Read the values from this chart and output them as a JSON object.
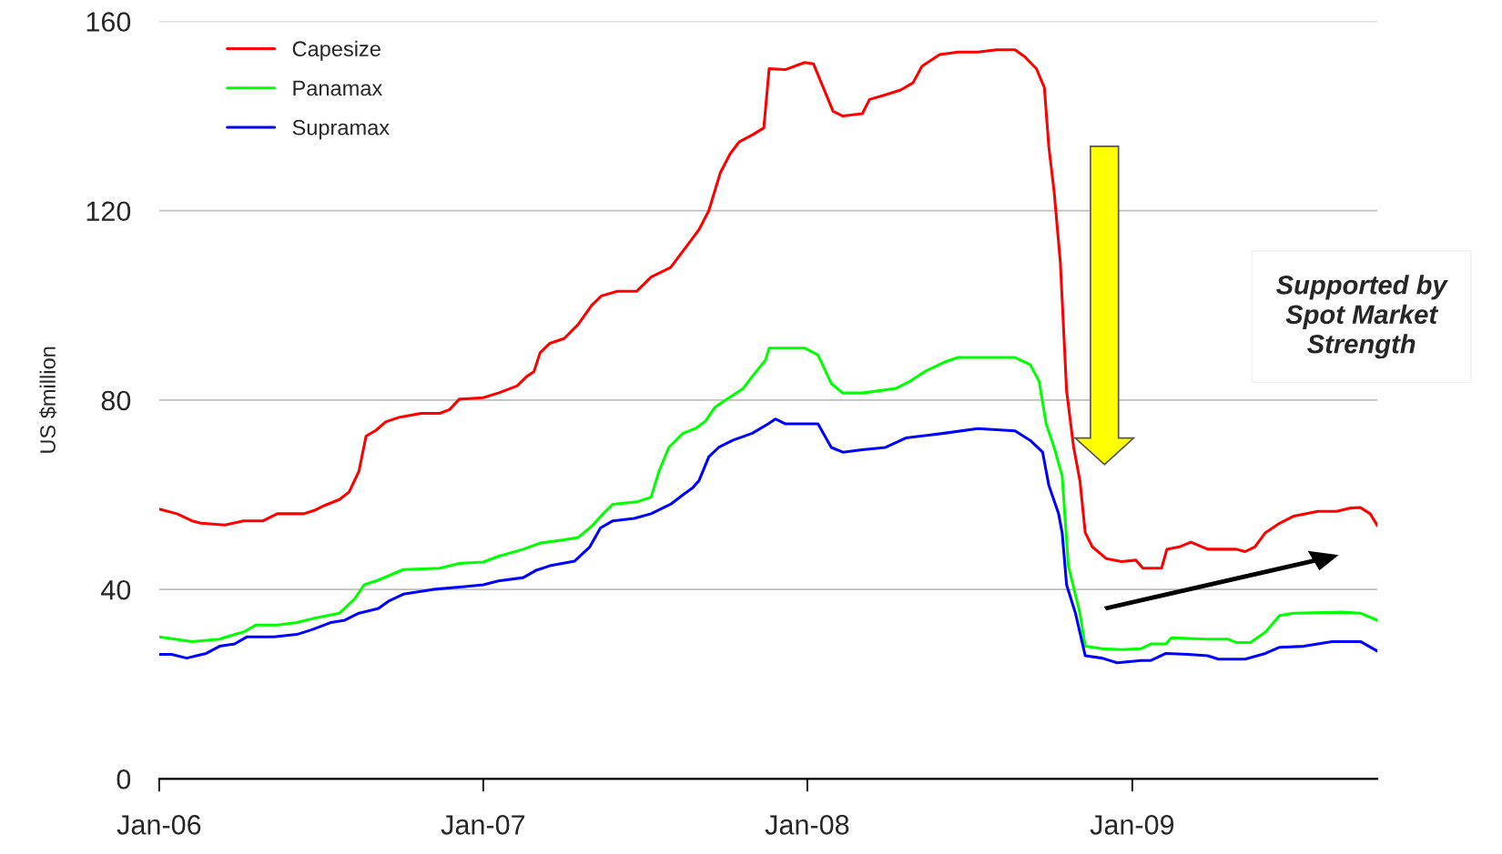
{
  "chart_data": {
    "type": "line",
    "ylabel": "US $million",
    "ylim": [
      0,
      160
    ],
    "yticks": [
      0,
      40,
      80,
      120,
      160
    ],
    "xlim": [
      "2006-01-01",
      "2009-10-04"
    ],
    "xticks": [
      {
        "value": "2006-01-01",
        "label": "Jan-06"
      },
      {
        "value": "2007-01-01",
        "label": "Jan-07"
      },
      {
        "value": "2008-01-01",
        "label": "Jan-08"
      },
      {
        "value": "2009-01-01",
        "label": "Jan-09"
      }
    ],
    "grid": "y",
    "legend": "top left",
    "marker": "none",
    "line_style": "solid",
    "annotations": [
      "Supported by\nSpot Market\nStrength"
    ],
    "series": [
      {
        "name": "Capesize",
        "color": "#ff0000",
        "x": [
          "2006-01-01",
          "2006-01-21",
          "2006-02-07",
          "2006-02-17",
          "2006-03-16",
          "2006-04-06",
          "2006-04-28",
          "2006-05-14",
          "2006-06-13",
          "2006-06-26",
          "2006-07-07",
          "2006-07-23",
          "2006-08-03",
          "2006-08-14",
          "2006-08-22",
          "2006-09-02",
          "2006-09-13",
          "2006-09-29",
          "2006-10-23",
          "2006-11-13",
          "2006-11-24",
          "2006-12-05",
          "2007-01-01",
          "2007-01-18",
          "2007-02-08",
          "2007-02-19",
          "2007-02-27",
          "2007-03-06",
          "2007-03-17",
          "2007-04-02",
          "2007-04-18",
          "2007-05-03",
          "2007-05-14",
          "2007-06-01",
          "2007-06-23",
          "2007-07-09",
          "2007-07-31",
          "2007-08-16",
          "2007-09-01",
          "2007-09-12",
          "2007-09-25",
          "2007-10-06",
          "2007-10-16",
          "2007-10-31",
          "2007-11-13",
          "2007-11-19",
          "2007-12-07",
          "2007-12-29",
          "2008-01-08",
          "2008-01-19",
          "2008-01-30",
          "2008-02-10",
          "2008-03-03",
          "2008-03-11",
          "2008-03-29",
          "2008-04-15",
          "2008-04-29",
          "2008-05-09",
          "2008-05-29",
          "2008-06-19",
          "2008-07-11",
          "2008-08-01",
          "2008-08-22",
          "2008-09-02",
          "2008-09-15",
          "2008-09-24",
          "2008-09-29",
          "2008-10-05",
          "2008-10-12",
          "2008-10-19",
          "2008-10-27",
          "2008-11-03",
          "2008-11-09",
          "2008-11-17",
          "2008-12-03",
          "2008-12-20",
          "2009-01-05",
          "2009-01-13",
          "2009-02-03",
          "2009-02-09",
          "2009-02-23",
          "2009-03-08",
          "2009-03-27",
          "2009-04-28",
          "2009-05-08",
          "2009-05-19",
          "2009-05-31",
          "2009-06-16",
          "2009-07-02",
          "2009-07-29",
          "2009-08-19",
          "2009-09-04",
          "2009-09-15",
          "2009-09-26",
          "2009-10-04"
        ],
        "values": [
          57,
          56,
          54.5,
          54,
          53.6,
          54.5,
          54.5,
          56,
          56,
          56.8,
          57.8,
          59,
          60.6,
          65,
          72.4,
          73.6,
          75.4,
          76.4,
          77.2,
          77.2,
          78,
          80.2,
          80.5,
          81.5,
          83,
          85,
          86,
          90,
          92,
          93,
          96,
          100,
          102,
          103,
          103,
          106,
          108,
          112,
          116,
          120,
          128,
          132,
          134.5,
          136,
          137.5,
          150,
          149.8,
          151.3,
          151,
          146,
          141,
          140,
          140.5,
          143.5,
          144.5,
          145.5,
          147,
          150.5,
          153,
          153.5,
          153.5,
          154,
          154,
          152.5,
          150,
          146,
          133.5,
          124,
          109,
          82,
          70,
          63,
          52,
          49,
          46.5,
          45.9,
          46.2,
          44.5,
          44.5,
          48.5,
          49,
          50,
          48.5,
          48.5,
          48,
          49,
          52,
          54,
          55.5,
          56.5,
          56.5,
          57.2,
          57.3,
          56,
          53.5
        ]
      },
      {
        "name": "Panamax",
        "color": "#00ff00",
        "x": [
          "2006-01-01",
          "2006-02-07",
          "2006-03-10",
          "2006-03-27",
          "2006-04-06",
          "2006-04-20",
          "2006-05-14",
          "2006-06-05",
          "2006-06-26",
          "2006-07-23",
          "2006-08-09",
          "2006-08-20",
          "2006-09-05",
          "2006-10-03",
          "2006-11-13",
          "2006-12-05",
          "2007-01-01",
          "2007-01-18",
          "2007-02-15",
          "2007-03-06",
          "2007-04-02",
          "2007-04-18",
          "2007-05-04",
          "2007-05-16",
          "2007-05-27",
          "2007-06-23",
          "2007-07-09",
          "2007-07-18",
          "2007-07-29",
          "2007-08-14",
          "2007-08-28",
          "2007-09-08",
          "2007-09-19",
          "2007-10-05",
          "2007-10-21",
          "2007-10-31",
          "2007-11-15",
          "2007-11-19",
          "2007-12-29",
          "2008-01-13",
          "2008-01-28",
          "2008-02-10",
          "2008-03-03",
          "2008-04-10",
          "2008-04-26",
          "2008-05-12",
          "2008-06-03",
          "2008-06-19",
          "2008-08-22",
          "2008-09-08",
          "2008-09-18",
          "2008-09-26",
          "2008-10-05",
          "2008-10-14",
          "2008-10-21",
          "2008-11-03",
          "2008-11-09",
          "2008-11-28",
          "2008-12-20",
          "2009-01-11",
          "2009-01-22",
          "2009-02-08",
          "2009-02-14",
          "2009-03-27",
          "2009-04-19",
          "2009-04-28",
          "2009-05-14",
          "2009-05-31",
          "2009-06-16",
          "2009-07-02",
          "2009-08-26",
          "2009-09-15",
          "2009-10-04"
        ],
        "values": [
          30,
          29,
          29.5,
          30.5,
          31,
          32.5,
          32.5,
          33,
          34,
          35,
          38,
          41,
          42,
          44.2,
          44.5,
          45.5,
          45.8,
          47,
          48.5,
          49.8,
          50.5,
          51,
          53.5,
          56,
          58,
          58.5,
          59.5,
          65,
          70,
          73,
          74,
          75.5,
          78.5,
          80.5,
          82.5,
          85,
          88.5,
          91,
          91,
          89.5,
          83.5,
          81.5,
          81.5,
          82.5,
          84,
          86,
          88,
          89,
          89,
          87.5,
          84,
          75,
          70,
          64,
          45,
          35,
          28,
          27.5,
          27.3,
          27.5,
          28.5,
          28.5,
          29.8,
          29.5,
          29.5,
          28.8,
          28.8,
          31,
          34.5,
          35,
          35.2,
          35,
          33.5
        ]
      },
      {
        "name": "Supramax",
        "color": "#0000ff",
        "x": [
          "2006-01-01",
          "2006-01-15",
          "2006-02-01",
          "2006-02-12",
          "2006-02-23",
          "2006-03-10",
          "2006-03-27",
          "2006-04-10",
          "2006-05-10",
          "2006-06-05",
          "2006-06-22",
          "2006-07-13",
          "2006-07-29",
          "2006-08-14",
          "2006-09-05",
          "2006-09-16",
          "2006-10-03",
          "2006-11-05",
          "2006-12-05",
          "2007-01-01",
          "2007-01-18",
          "2007-02-15",
          "2007-03-01",
          "2007-03-17",
          "2007-04-14",
          "2007-05-01",
          "2007-05-13",
          "2007-05-27",
          "2007-06-20",
          "2007-07-09",
          "2007-07-31",
          "2007-08-14",
          "2007-08-25",
          "2007-09-01",
          "2007-09-12",
          "2007-09-23",
          "2007-10-09",
          "2007-10-31",
          "2007-11-18",
          "2007-11-26",
          "2007-12-07",
          "2008-01-13",
          "2008-01-28",
          "2008-02-10",
          "2008-03-03",
          "2008-03-29",
          "2008-04-21",
          "2008-05-12",
          "2008-06-03",
          "2008-07-11",
          "2008-08-22",
          "2008-09-08",
          "2008-09-22",
          "2008-09-29",
          "2008-10-10",
          "2008-10-14",
          "2008-10-19",
          "2008-10-29",
          "2008-11-09",
          "2008-11-28",
          "2008-12-15",
          "2009-01-11",
          "2009-01-22",
          "2009-02-08",
          "2009-03-05",
          "2009-03-27",
          "2009-04-08",
          "2009-05-08",
          "2009-05-31",
          "2009-06-16",
          "2009-07-13",
          "2009-08-14",
          "2009-09-15",
          "2009-10-04"
        ],
        "values": [
          26.3,
          26.3,
          25.5,
          26,
          26.5,
          28,
          28.5,
          30,
          30,
          30.5,
          31.5,
          33,
          33.5,
          35,
          36,
          37.5,
          39,
          40,
          40.5,
          41,
          41.8,
          42.5,
          44,
          45,
          46,
          49,
          53,
          54.5,
          55,
          56,
          58,
          60,
          61.5,
          63,
          68,
          70,
          71.5,
          73,
          75,
          76,
          75,
          75,
          70,
          69,
          69.5,
          70,
          72,
          72.5,
          73,
          74,
          73.5,
          71.5,
          69,
          62,
          56,
          52,
          41,
          35,
          26,
          25.5,
          24.5,
          25,
          25,
          26.5,
          26.3,
          26,
          25.3,
          25.3,
          26.5,
          27.8,
          28,
          29,
          29,
          27
        ]
      }
    ]
  }
}
